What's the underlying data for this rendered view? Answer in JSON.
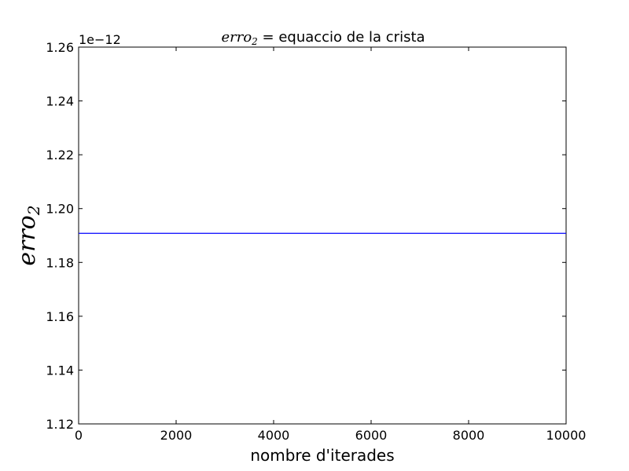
{
  "chart_data": {
    "type": "line",
    "title_math": "erro",
    "title_math_sub": "2",
    "title_eq": " = ",
    "title_text": "equaccio de la crista",
    "xlabel": "nombre d'iterades",
    "ylabel_math": "erro",
    "ylabel_math_sub": "2",
    "y_offset_label": "1e−12",
    "xlim": [
      0,
      10000
    ],
    "ylim": [
      1.12,
      1.26
    ],
    "x_ticks": [
      0,
      2000,
      4000,
      6000,
      8000,
      10000
    ],
    "x_tick_labels": [
      "0",
      "2000",
      "4000",
      "6000",
      "8000",
      "10000"
    ],
    "y_ticks": [
      1.12,
      1.14,
      1.16,
      1.18,
      1.2,
      1.22,
      1.24,
      1.26
    ],
    "y_tick_labels": [
      "1.12",
      "1.14",
      "1.16",
      "1.18",
      "1.20",
      "1.22",
      "1.24",
      "1.26"
    ],
    "grid": false,
    "series": [
      {
        "color": "#0000ff",
        "x": [
          0,
          10000
        ],
        "y": [
          1.1908,
          1.1908
        ]
      }
    ]
  }
}
